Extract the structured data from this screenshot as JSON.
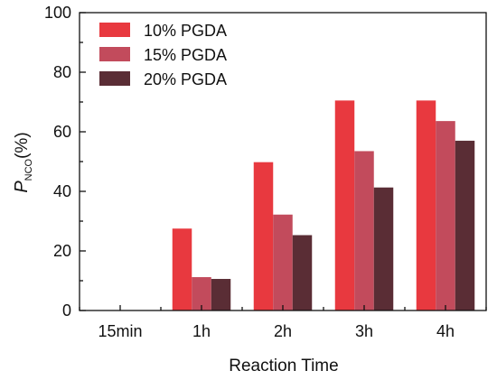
{
  "chart_data": {
    "type": "bar",
    "categories": [
      "15min",
      "1h",
      "2h",
      "3h",
      "4h"
    ],
    "series": [
      {
        "name": "10% PGDA",
        "color": "#e8393f",
        "values": [
          0,
          27.5,
          49.8,
          70.5,
          70.5
        ]
      },
      {
        "name": "15% PGDA",
        "color": "#c24b5c",
        "values": [
          0,
          11.2,
          32.2,
          53.5,
          63.6
        ]
      },
      {
        "name": "20% PGDA",
        "color": "#5a2d35",
        "values": [
          0,
          10.6,
          25.3,
          41.3,
          57.0
        ]
      }
    ],
    "title": "",
    "xlabel": "Reaction Time",
    "ylabel": {
      "main": "P",
      "sub": "NCO",
      "unit": "(%)"
    },
    "ylim": [
      0,
      100
    ],
    "yticks": [
      0,
      20,
      40,
      60,
      80,
      100
    ],
    "grid": false,
    "legend": "top-left"
  }
}
